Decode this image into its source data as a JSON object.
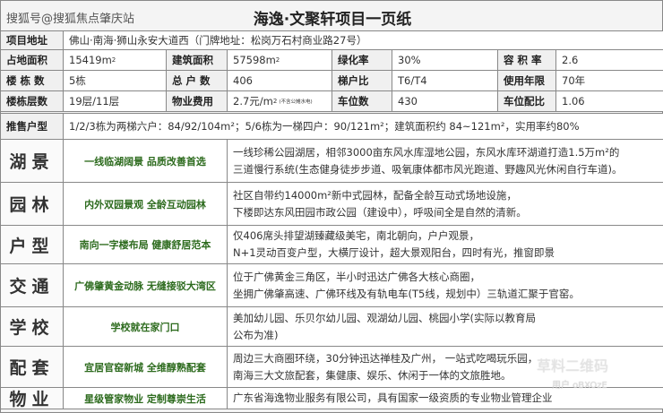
{
  "watermark_top": "搜狐号@搜狐焦点肇庆站",
  "title": "海逸·文聚轩项目一页纸",
  "address": {
    "label": "项目地址",
    "value": "佛山·南海·狮山永安大道西（门牌地址：松岗万石村商业路27号）"
  },
  "stats": [
    [
      {
        "label": "占地面积",
        "value": "15419m",
        "sup": "2"
      },
      {
        "label": "建筑面积",
        "value": "57598m",
        "sup": "2"
      },
      {
        "label": "绿化率",
        "value": "30%"
      },
      {
        "label": "容 积 率",
        "value": "2.6"
      }
    ],
    [
      {
        "label": "楼 栋 数",
        "value": "5栋"
      },
      {
        "label": "总 户 数",
        "value": "406"
      },
      {
        "label": "梯户比",
        "value": "T6/T4"
      },
      {
        "label": "使用年限",
        "value": "70年"
      }
    ],
    [
      {
        "label": "楼栋层数",
        "value": "19层/11层"
      },
      {
        "label": "物业费用",
        "value": "2.7元/m",
        "sup": "2",
        "note": "(不含公摊水电)"
      },
      {
        "label": "车位数",
        "value": "430"
      },
      {
        "label": "车位配比",
        "value": "1.06"
      }
    ]
  ],
  "units": {
    "label": "推售户型",
    "value": "1/2/3栋为两梯六户：84/92/104m²；5/6栋为一梯四户：90/121m²；建筑面积约 84~121m²，实用率约80%"
  },
  "features": [
    {
      "title": "湖景",
      "slogan": "一线临湖阔景 品质改善首选",
      "lines": [
        "一线珍稀公园湖居，相邻3000亩东风水库湿地公园，东风水库环湖道打造1.5万m²的",
        "三道慢行系统(生态健身徒步步道、吸氧康体都市风光跑道、野趣风光休闲自行车道)。"
      ]
    },
    {
      "title": "园林",
      "slogan": "内外双园景观 全龄互动园林",
      "lines": [
        "社区自带约14000m²新中式园林，配备全龄互动式场地设施，",
        "下楼即达东风田园市政公园（建设中），呼吸间全是自然的清新。"
      ]
    },
    {
      "title": "户型",
      "slogan": "南向一字楼布局 健康舒居范本",
      "lines": [
        "仅406席头排望湖臻藏级美宅，南北朝向，户户观景，",
        "N+1灵动百变户型，大横厅设计，超大景观阳台，四时有光，推窗即景"
      ]
    },
    {
      "title": "交通",
      "slogan": "广佛肇黄金动脉 无缝接驳大湾区",
      "lines": [
        "位于广佛黄金三角区，半小时迅达广佛各大核心商圈，",
        "坐拥广佛肇高速、广佛环线及有轨电车(T5线，规划中）三轨道汇聚于官窑。"
      ]
    },
    {
      "title": "学校",
      "slogan": "学校就在家门口",
      "lines": [
        "美加幼儿园、乐贝尔幼儿园、观湖幼儿园、桃园小学(实际以教育局",
        "公布为准)"
      ]
    },
    {
      "title": "配套",
      "slogan": "宜居官窑新城 全维醇熟配套",
      "lines": [
        "周边三大商圈环绕，30分钟迅达禅桂及广州， 一站式吃喝玩乐园，",
        "南海三大文旅配套，集健康、娱乐、休闲于一体的文旅胜地。"
      ]
    },
    {
      "title": "物业",
      "slogan": "星级管家物业 定制尊崇生活",
      "lines": [
        "广东省海逸物业服务有限公司，具有国家一级资质的专业物业管理企业"
      ]
    }
  ],
  "watermark_qr": "草料二维码",
  "watermark_user": "用户 oBXOzE",
  "colors": {
    "slogan": "#2d6b1e",
    "border": "#888888"
  }
}
